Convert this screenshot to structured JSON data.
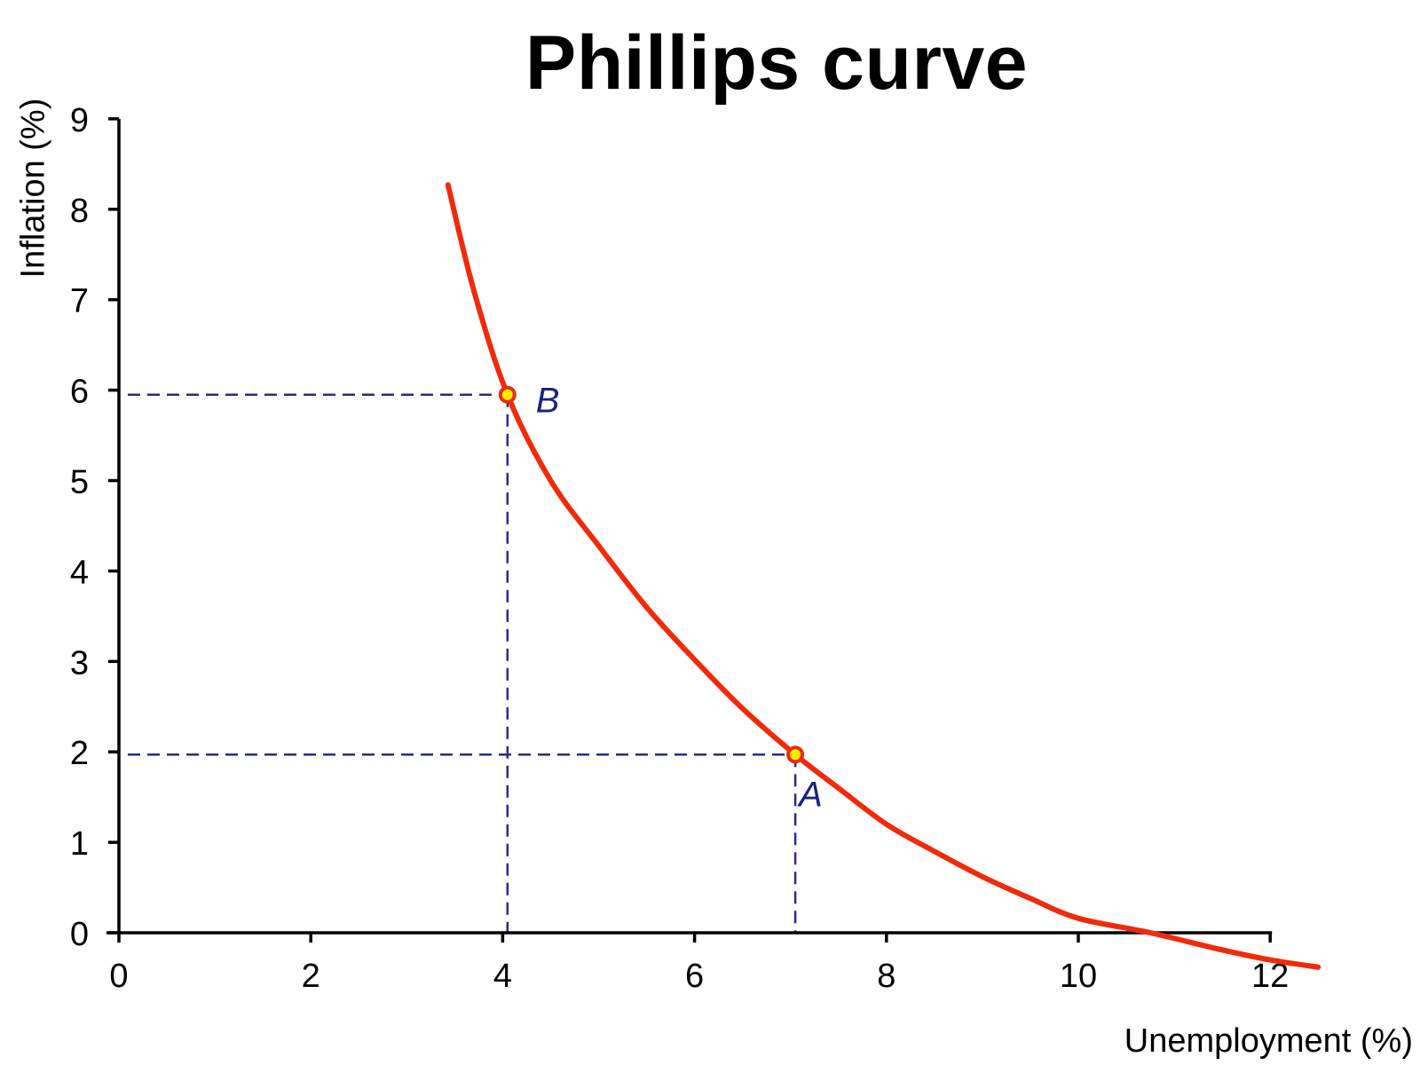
{
  "chart_data": {
    "type": "line",
    "title": "Phillips curve",
    "xlabel": "Unemployment (%)",
    "ylabel": "Inflation (%)",
    "xlim": [
      0,
      12
    ],
    "ylim": [
      0,
      9
    ],
    "x_ticks": [
      0,
      2,
      4,
      6,
      8,
      10,
      12
    ],
    "y_ticks": [
      0,
      1,
      2,
      3,
      4,
      5,
      6,
      7,
      8,
      9
    ],
    "grid": false,
    "legend": null,
    "series": [
      {
        "name": "Phillips curve",
        "color": "#f02a0a",
        "x": [
          3.43,
          3.7,
          4.05,
          4.5,
          5.0,
          5.5,
          6.0,
          6.5,
          7.05,
          7.5,
          8.0,
          8.5,
          9.0,
          9.5,
          10.0,
          10.75,
          11.5,
          12.0,
          12.5
        ],
        "y": [
          8.27,
          7.1,
          5.95,
          5.0,
          4.28,
          3.6,
          3.02,
          2.48,
          1.97,
          1.6,
          1.2,
          0.9,
          0.62,
          0.38,
          0.16,
          0.0,
          -0.19,
          -0.3,
          -0.38
        ]
      }
    ],
    "points": [
      {
        "label": "A",
        "x": 7.05,
        "y": 1.97
      },
      {
        "label": "B",
        "x": 4.05,
        "y": 5.95
      }
    ],
    "annotations": [
      "Dashed guide lines from A and B to both axes"
    ]
  },
  "colors": {
    "curve": "#f02a0a",
    "marker_fill": "#ffee00",
    "marker_stroke": "#e62d10",
    "guide": "#2a2a8a",
    "point_label": "#1a237e",
    "axis": "#000000"
  }
}
